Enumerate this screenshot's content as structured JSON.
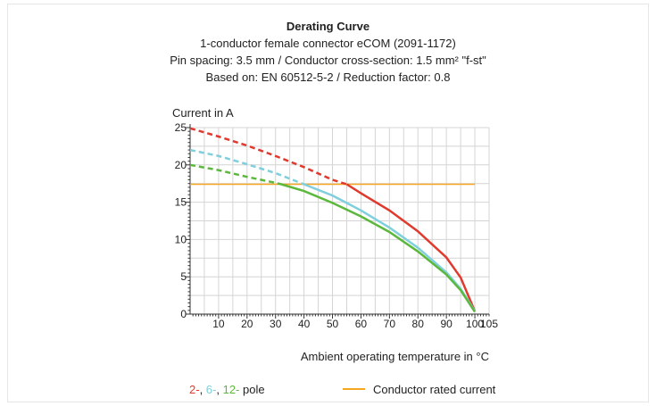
{
  "colors": {
    "grid": "#d4d4d4",
    "axis": "#333333",
    "pole2": "#e03a2e",
    "pole6": "#7fcfdc",
    "pole12": "#5cb83c",
    "rated": "#f5a623"
  },
  "chart_data": {
    "type": "line",
    "title": "Derating Curve",
    "subtitle_lines": [
      "1-conductor female connector eCOM (2091-1172)",
      "Pin spacing: 3.5 mm / Conductor cross-section: 1.5 mm² \"f-st\"",
      "Based on: EN 60512-5-2 / Reduction factor: 0.8"
    ],
    "ylabel": "Current in A",
    "xlabel": "Ambient operating temperature in °C",
    "xlim": [
      0,
      105
    ],
    "ylim": [
      0,
      25
    ],
    "x_ticks": [
      10,
      20,
      30,
      40,
      50,
      60,
      70,
      80,
      90,
      100,
      105
    ],
    "y_ticks": [
      0,
      5,
      10,
      15,
      20,
      25
    ],
    "grid": true,
    "legend": {
      "pole_prefix": [
        "2-",
        "6-",
        "12-"
      ],
      "pole_suffix": "pole",
      "rated_label": "Conductor rated current"
    },
    "series": [
      {
        "name": "2-",
        "color_key": "pole2",
        "rated_crossing_x": 55,
        "x": [
          0,
          10,
          20,
          30,
          40,
          50,
          55,
          60,
          70,
          80,
          90,
          95,
          100
        ],
        "y": [
          24.9,
          23.8,
          22.6,
          21.2,
          19.7,
          18.0,
          17.4,
          16.2,
          13.9,
          11.1,
          7.6,
          4.9,
          0.4
        ]
      },
      {
        "name": "6-",
        "color_key": "pole6",
        "rated_crossing_x": 40,
        "x": [
          0,
          10,
          20,
          30,
          40,
          50,
          60,
          70,
          80,
          90,
          95,
          100
        ],
        "y": [
          22.0,
          21.2,
          20.1,
          18.9,
          17.4,
          15.9,
          13.9,
          11.6,
          8.9,
          5.6,
          3.4,
          0.4
        ]
      },
      {
        "name": "12-",
        "color_key": "pole12",
        "rated_crossing_x": 32,
        "x": [
          0,
          10,
          20,
          30,
          32,
          40,
          50,
          60,
          70,
          80,
          90,
          95,
          100
        ],
        "y": [
          20.0,
          19.3,
          18.4,
          17.6,
          17.4,
          16.5,
          14.9,
          13.1,
          11.0,
          8.4,
          5.3,
          3.2,
          0.3
        ]
      }
    ],
    "rated_current": {
      "y": 17.4,
      "x_start": 0,
      "x_end": 100
    }
  }
}
